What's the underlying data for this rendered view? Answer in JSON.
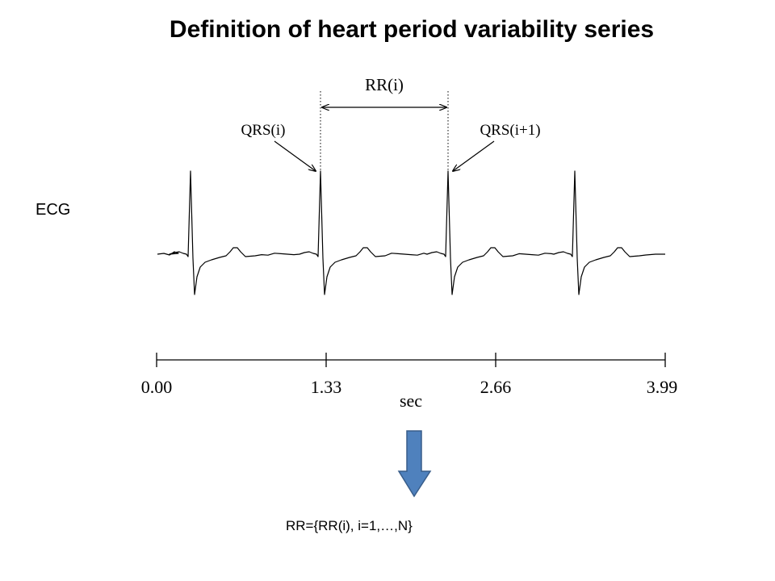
{
  "slide": {
    "title": "Definition of heart period variability series",
    "ecg_label": "ECG",
    "formula": "RR={RR(i), i=1,…,N}"
  },
  "figure": {
    "interval_label": "RR(i)",
    "qrs_left_label": "QRS(i)",
    "qrs_right_label": "QRS(i+1)",
    "axis": {
      "unit_label": "sec",
      "ticks": [
        "0.00",
        "1.33",
        "2.66",
        "3.99"
      ]
    }
  },
  "colors": {
    "arrow_fill": "#4f81bd",
    "arrow_stroke": "#385d8a"
  }
}
